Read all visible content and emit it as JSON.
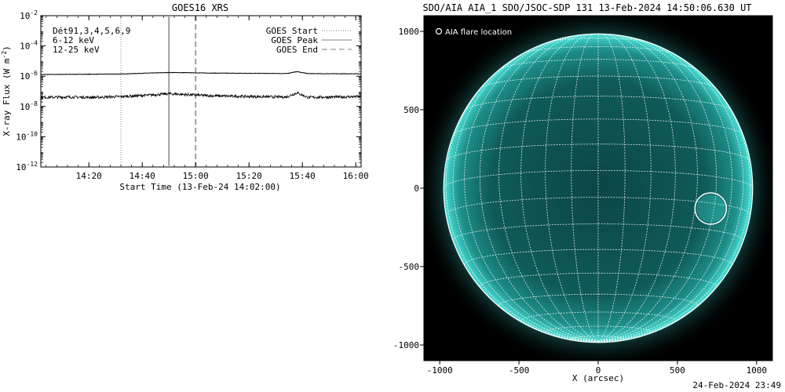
{
  "chart_data": [
    {
      "type": "line",
      "title": "GOES16 XRS",
      "xlabel": "Start Time (13-Feb-24 14:02:00)",
      "ylabel": "X-ray Flux (W m",
      "ylabel_exponent": "-2",
      "ylabel_close": ")",
      "y_scale": "log",
      "ylim": [
        1e-12,
        0.01
      ],
      "xlim": [
        "14:02",
        "16:02"
      ],
      "x_tick_labels": [
        "14:20",
        "14:40",
        "15:00",
        "15:20",
        "15:40",
        "16:00"
      ],
      "x_tick_minutes": [
        18,
        38,
        58,
        78,
        98,
        118
      ],
      "y_ticks": [
        {
          "base": "10",
          "exp": "-2",
          "value": 0.01
        },
        {
          "base": "10",
          "exp": "-4",
          "value": 0.0001
        },
        {
          "base": "10",
          "exp": "-6",
          "value": 1e-06
        },
        {
          "base": "10",
          "exp": "-8",
          "value": 1e-08
        },
        {
          "base": "10",
          "exp": "-10",
          "value": 1e-10
        },
        {
          "base": "10",
          "exp": "-12",
          "value": 1e-12
        }
      ],
      "legend_left": [
        {
          "label": "Dét91,3,4,5,6,9",
          "color": "#000000"
        },
        {
          "label": "6-12 keV",
          "color": "#cc00cc"
        },
        {
          "label": "12-25 keV",
          "color": "#00cc00"
        }
      ],
      "legend_right": [
        {
          "label": "GOES Start",
          "style": "dotted",
          "color": "#999999"
        },
        {
          "label": "GOES Peak",
          "style": "solid",
          "color": "#999999"
        },
        {
          "label": "GOES End",
          "style": "dashed",
          "color": "#999999"
        }
      ],
      "markers_minutes": {
        "start": 30,
        "peak": 48,
        "end": 58
      },
      "series": [
        {
          "x_minutes": [
            0,
            20,
            30,
            40,
            48,
            55,
            65,
            80,
            92,
            96,
            100,
            110,
            120
          ],
          "values": [
            1.3e-06,
            1.35e-06,
            1.4e-06,
            1.6e-06,
            1.75e-06,
            1.7e-06,
            1.6e-06,
            1.55e-06,
            1.5e-06,
            2e-06,
            1.5e-06,
            1.45e-06,
            1.45e-06
          ]
        },
        {
          "x_minutes": [
            0,
            10,
            20,
            30,
            40,
            48,
            55,
            65,
            80,
            92,
            96,
            100,
            110,
            120
          ],
          "values": [
            4e-08,
            4.2e-08,
            4e-08,
            4.5e-08,
            5.5e-08,
            7e-08,
            6e-08,
            5e-08,
            4.5e-08,
            4.2e-08,
            8e-08,
            4e-08,
            4.2e-08,
            4.5e-08
          ]
        }
      ]
    },
    {
      "type": "image",
      "title": "SDO/AIA AIA_1 SDO/JSOC-SDP 131 13-Feb-2024 14:50:06.630 UT",
      "xlabel": "X (arcsec)",
      "x_ticks": [
        -1000,
        -500,
        0,
        500,
        1000
      ],
      "y_ticks": [
        1000,
        500,
        0,
        -500,
        -1000
      ],
      "xlim": [
        -1100,
        1100
      ],
      "ylim": [
        -1100,
        1100
      ],
      "legend": "AIA flare location",
      "flare_location_arcsec": [
        710,
        -130
      ],
      "solar_radius_arcsec": 975,
      "colors": {
        "disk": "#0e5a58",
        "limb": "#3fd6cc",
        "grid": "#ffffff",
        "background": "#000000"
      }
    }
  ],
  "footer_timestamp": "24-Feb-2024 23:49"
}
